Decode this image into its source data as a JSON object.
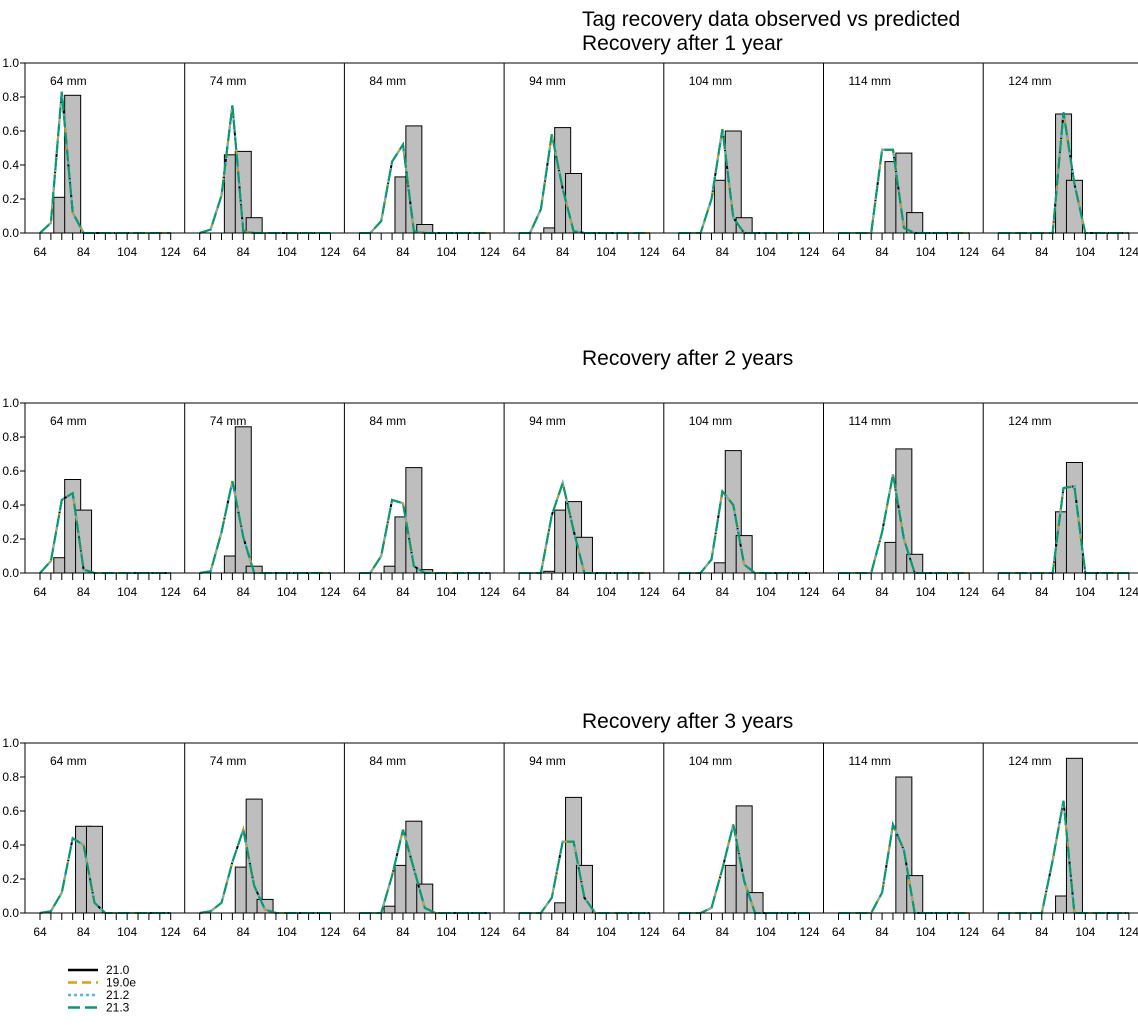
{
  "chart_data": {
    "type": "bar",
    "title": "Tag recovery data observed vs predicted",
    "x_ticks": [
      64,
      84,
      104,
      124
    ],
    "y_ticks": [
      "0.0",
      "0.2",
      "0.4",
      "0.6",
      "0.8",
      "1.0"
    ],
    "ylim": [
      0,
      1
    ],
    "size_classes": [
      64,
      69,
      74,
      79,
      84,
      89,
      94,
      99,
      104,
      109,
      114,
      119,
      124
    ],
    "legend": [
      {
        "name": "21.0",
        "color": "#000000",
        "dash": "solid"
      },
      {
        "name": "19.0e",
        "color": "#e69f00",
        "dash": "dashed"
      },
      {
        "name": "21.2",
        "color": "#56b4e9",
        "dash": "dotted"
      },
      {
        "name": "21.3",
        "color": "#009e73",
        "dash": "longdash"
      }
    ],
    "rows": [
      {
        "subtitle": "Recovery after 1 year",
        "panels": [
          {
            "label": "64 mm",
            "obs": [
              0,
              0,
              0.21,
              0.81,
              0,
              0,
              0,
              0,
              0,
              0,
              0,
              0,
              0
            ],
            "pred": [
              0,
              0.06,
              0.83,
              0.12,
              0,
              0,
              0,
              0,
              0,
              0,
              0,
              0,
              0
            ]
          },
          {
            "label": "74 mm",
            "obs": [
              0,
              0,
              0,
              0.46,
              0.48,
              0.09,
              0,
              0,
              0,
              0,
              0,
              0,
              0
            ],
            "pred": [
              0,
              0.02,
              0.22,
              0.75,
              0.01,
              0,
              0,
              0,
              0,
              0,
              0,
              0,
              0
            ]
          },
          {
            "label": "84 mm",
            "obs": [
              0,
              0,
              0,
              0,
              0.33,
              0.63,
              0.05,
              0,
              0,
              0,
              0,
              0,
              0
            ],
            "pred": [
              0,
              0,
              0.07,
              0.42,
              0.52,
              0.01,
              0,
              0,
              0,
              0,
              0,
              0,
              0
            ]
          },
          {
            "label": "94 mm",
            "obs": [
              0,
              0,
              0,
              0.03,
              0.62,
              0.35,
              0,
              0,
              0,
              0,
              0,
              0,
              0
            ],
            "pred": [
              0,
              0,
              0.14,
              0.58,
              0.26,
              0.01,
              0,
              0,
              0,
              0,
              0,
              0,
              0
            ]
          },
          {
            "label": "104 mm",
            "obs": [
              0,
              0,
              0,
              0,
              0.31,
              0.6,
              0.09,
              0,
              0,
              0,
              0,
              0,
              0
            ],
            "pred": [
              0,
              0,
              0,
              0.2,
              0.61,
              0.09,
              0,
              0,
              0,
              0,
              0,
              0,
              0
            ]
          },
          {
            "label": "114 mm",
            "obs": [
              0,
              0,
              0,
              0,
              0,
              0.42,
              0.47,
              0.12,
              0,
              0,
              0,
              0,
              0
            ],
            "pred": [
              0,
              0,
              0,
              0,
              0.49,
              0.49,
              0.03,
              0,
              0,
              0,
              0,
              0,
              0
            ]
          },
          {
            "label": "124 mm",
            "obs": [
              0,
              0,
              0,
              0,
              0,
              0,
              0.7,
              0.31,
              0,
              0,
              0,
              0,
              0
            ],
            "pred": [
              0,
              0,
              0,
              0,
              0,
              0,
              0.71,
              0.29,
              0,
              0,
              0,
              0,
              0
            ]
          }
        ]
      },
      {
        "subtitle": "Recovery after 2 years",
        "panels": [
          {
            "label": "64 mm",
            "obs": [
              0,
              0,
              0.09,
              0.55,
              0.37,
              0,
              0,
              0,
              0,
              0,
              0,
              0,
              0
            ],
            "pred": [
              0,
              0.07,
              0.43,
              0.47,
              0.02,
              0,
              0,
              0,
              0,
              0,
              0,
              0,
              0
            ]
          },
          {
            "label": "74 mm",
            "obs": [
              0,
              0,
              0,
              0.1,
              0.86,
              0.04,
              0,
              0,
              0,
              0,
              0,
              0,
              0
            ],
            "pred": [
              0,
              0.01,
              0.24,
              0.54,
              0.21,
              0,
              0,
              0,
              0,
              0,
              0,
              0,
              0
            ]
          },
          {
            "label": "84 mm",
            "obs": [
              0,
              0,
              0,
              0.04,
              0.33,
              0.62,
              0.02,
              0,
              0,
              0,
              0,
              0,
              0
            ],
            "pred": [
              0,
              0,
              0.1,
              0.43,
              0.41,
              0.04,
              0,
              0,
              0,
              0,
              0,
              0,
              0
            ]
          },
          {
            "label": "94 mm",
            "obs": [
              0,
              0,
              0,
              0.01,
              0.37,
              0.42,
              0.21,
              0,
              0,
              0,
              0,
              0,
              0
            ],
            "pred": [
              0,
              0,
              0,
              0.34,
              0.53,
              0.25,
              0,
              0,
              0,
              0,
              0,
              0,
              0
            ]
          },
          {
            "label": "104 mm",
            "obs": [
              0,
              0,
              0,
              0,
              0.06,
              0.72,
              0.22,
              0,
              0,
              0,
              0,
              0,
              0
            ],
            "pred": [
              0,
              0,
              0,
              0.08,
              0.48,
              0.4,
              0.05,
              0,
              0,
              0,
              0,
              0,
              0
            ]
          },
          {
            "label": "114 mm",
            "obs": [
              0,
              0,
              0,
              0,
              0,
              0.18,
              0.73,
              0.11,
              0,
              0,
              0,
              0,
              0
            ],
            "pred": [
              0,
              0,
              0,
              0,
              0.24,
              0.58,
              0.2,
              0,
              0,
              0,
              0,
              0,
              0
            ]
          },
          {
            "label": "124 mm",
            "obs": [
              0,
              0,
              0,
              0,
              0,
              0,
              0.36,
              0.65,
              0,
              0,
              0,
              0,
              0
            ],
            "pred": [
              0,
              0,
              0,
              0,
              0,
              0,
              0.5,
              0.51,
              0,
              0,
              0,
              0,
              0
            ]
          }
        ]
      },
      {
        "subtitle": "Recovery after 3 years",
        "panels": [
          {
            "label": "64 mm",
            "obs": [
              0,
              0,
              0,
              0,
              0.51,
              0.51,
              0,
              0,
              0,
              0,
              0,
              0,
              0
            ],
            "pred": [
              0,
              0.01,
              0.12,
              0.44,
              0.4,
              0.06,
              0,
              0,
              0,
              0,
              0,
              0,
              0
            ]
          },
          {
            "label": "74 mm",
            "obs": [
              0,
              0,
              0,
              0,
              0.27,
              0.67,
              0.08,
              0,
              0,
              0,
              0,
              0,
              0
            ],
            "pred": [
              0,
              0.01,
              0.06,
              0.3,
              0.49,
              0.16,
              0.02,
              0,
              0,
              0,
              0,
              0,
              0
            ]
          },
          {
            "label": "84 mm",
            "obs": [
              0,
              0,
              0,
              0.04,
              0.28,
              0.54,
              0.17,
              0,
              0,
              0,
              0,
              0,
              0
            ],
            "pred": [
              0,
              0,
              0,
              0.22,
              0.49,
              0.26,
              0.03,
              0,
              0,
              0,
              0,
              0,
              0
            ]
          },
          {
            "label": "94 mm",
            "obs": [
              0,
              0,
              0,
              0,
              0.06,
              0.68,
              0.28,
              0,
              0,
              0,
              0,
              0,
              0
            ],
            "pred": [
              0,
              0,
              0,
              0.09,
              0.42,
              0.42,
              0.09,
              0,
              0,
              0,
              0,
              0,
              0
            ]
          },
          {
            "label": "104 mm",
            "obs": [
              0,
              0,
              0,
              0,
              0,
              0.28,
              0.63,
              0.12,
              0,
              0,
              0,
              0,
              0
            ],
            "pred": [
              0,
              0,
              0,
              0.03,
              0.26,
              0.52,
              0.19,
              0,
              0,
              0,
              0,
              0,
              0
            ]
          },
          {
            "label": "114 mm",
            "obs": [
              0,
              0,
              0,
              0,
              0,
              0,
              0.8,
              0.22,
              0,
              0,
              0,
              0,
              0
            ],
            "pred": [
              0,
              0,
              0,
              0,
              0.12,
              0.52,
              0.37,
              0,
              0,
              0,
              0,
              0,
              0
            ]
          },
          {
            "label": "124 mm",
            "obs": [
              0,
              0,
              0,
              0,
              0,
              0,
              0.1,
              0.91,
              0,
              0,
              0,
              0,
              0
            ],
            "pred": [
              0,
              0,
              0,
              0,
              0,
              0.31,
              0.66,
              0,
              0,
              0,
              0,
              0,
              0
            ]
          }
        ]
      }
    ]
  }
}
